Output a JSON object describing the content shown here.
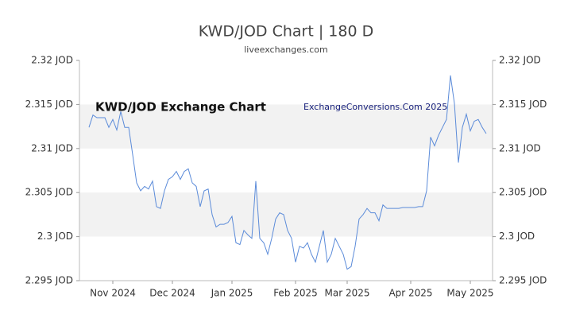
{
  "chart_data": {
    "type": "line",
    "title": "KWD/JOD Chart | 180 D",
    "subtitle": "liveexchanges.com",
    "annotations": [
      "KWD/JOD Exchange Chart",
      "ExchangeConversions.Com 2025"
    ],
    "categories": [
      null,
      null,
      null,
      null,
      null,
      null,
      "Nov 2024",
      null,
      null,
      null,
      null,
      null,
      null,
      null,
      null,
      null,
      null,
      null,
      null,
      null,
      null,
      "Dec 2024",
      null,
      null,
      null,
      null,
      null,
      null,
      null,
      null,
      null,
      null,
      null,
      null,
      null,
      null,
      "Jan 2025",
      null,
      null,
      null,
      null,
      null,
      null,
      null,
      null,
      null,
      null,
      null,
      null,
      null,
      null,
      null,
      "Feb 2025",
      null,
      null,
      null,
      null,
      null,
      null,
      null,
      null,
      null,
      null,
      null,
      null,
      "Mar 2025",
      null,
      null,
      null,
      null,
      null,
      null,
      null,
      null,
      null,
      null,
      null,
      null,
      null,
      null,
      null,
      "Apr 2025",
      null,
      null,
      null,
      null,
      null,
      null,
      null,
      null,
      null,
      null,
      null,
      null,
      null,
      null,
      "May 2025",
      null,
      null,
      null,
      null
    ],
    "series": [
      {
        "name": "KWD/JOD",
        "color": "#5b8bd9",
        "values": [
          2.3124,
          2.3138,
          2.3135,
          2.3135,
          2.3135,
          2.3124,
          2.3133,
          2.3121,
          2.3142,
          2.3124,
          2.3124,
          2.3093,
          2.3061,
          2.3052,
          2.3057,
          2.3054,
          2.3063,
          2.3034,
          2.3032,
          2.3052,
          2.3065,
          2.3068,
          2.3074,
          2.3065,
          2.3074,
          2.3077,
          2.3061,
          2.3057,
          2.3034,
          2.3052,
          2.3054,
          2.3025,
          2.3011,
          2.3014,
          2.3014,
          2.3016,
          2.3023,
          2.2993,
          2.2991,
          2.3007,
          2.3002,
          2.2998,
          2.3063,
          2.2998,
          2.2993,
          2.298,
          2.2998,
          2.302,
          2.3027,
          2.3025,
          2.3007,
          2.2998,
          2.2971,
          2.2989,
          2.2987,
          2.2993,
          2.298,
          2.2971,
          2.2989,
          2.3007,
          2.2971,
          2.298,
          2.2998,
          2.2989,
          2.298,
          2.2963,
          2.2966,
          2.2989,
          2.302,
          2.3025,
          2.3032,
          2.3027,
          2.3027,
          2.3018,
          2.3036,
          2.3032,
          2.3032,
          2.3032,
          2.3032,
          2.3033,
          2.3033,
          2.3033,
          2.3033,
          2.3034,
          2.3034,
          2.3052,
          2.3113,
          2.3103,
          2.3115,
          2.3124,
          2.3133,
          2.3183,
          2.3151,
          2.3084,
          2.3124,
          2.3139,
          2.312,
          2.3131,
          2.3133,
          2.3124,
          2.3117
        ]
      }
    ],
    "ylim": [
      2.295,
      2.32
    ],
    "yticks": [
      {
        "value": 2.295,
        "label": "2.295 JOD"
      },
      {
        "value": 2.3,
        "label": "2.3 JOD"
      },
      {
        "value": 2.305,
        "label": "2.305 JOD"
      },
      {
        "value": 2.31,
        "label": "2.31 JOD"
      },
      {
        "value": 2.315,
        "label": "2.315 JOD"
      },
      {
        "value": 2.32,
        "label": "2.32 JOD"
      }
    ],
    "grid": true
  }
}
